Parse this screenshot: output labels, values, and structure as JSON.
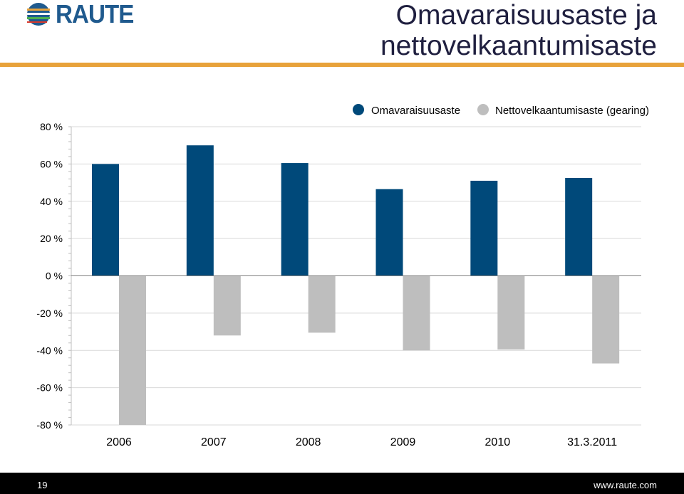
{
  "header": {
    "logo_text": "RAUTE",
    "title_line1": "Omavaraisuusaste ja",
    "title_line2": "nettovelkaantumisaste"
  },
  "footer": {
    "page_number": "19",
    "website": "www.raute.com"
  },
  "colors": {
    "series1": "#00497a",
    "series2": "#bebebe",
    "accent_rule": "#e8a23a",
    "logo": "#1f5a8e"
  },
  "chart_data": {
    "type": "bar",
    "title": "",
    "xlabel": "",
    "ylabel": "",
    "categories": [
      "2006",
      "2007",
      "2008",
      "2009",
      "2010",
      "31.3.2011"
    ],
    "series": [
      {
        "name": "Omavaraisuusaste",
        "values": [
          60,
          70,
          60.5,
          46.5,
          51,
          52.5
        ]
      },
      {
        "name": "Nettovelkaantumisaste (gearing)",
        "values": [
          -80,
          -32,
          -30.5,
          -40,
          -39.5,
          -47
        ]
      }
    ],
    "ylim": [
      -80,
      80
    ],
    "y_ticks": [
      "80 %",
      "60 %",
      "40 %",
      "20 %",
      "0 %",
      "-20 %",
      "-40 %",
      "-60 %",
      "-80 %"
    ],
    "y_tick_values": [
      80,
      60,
      40,
      20,
      0,
      -20,
      -40,
      -60,
      -80
    ],
    "grid": true,
    "legend_position": "top"
  }
}
